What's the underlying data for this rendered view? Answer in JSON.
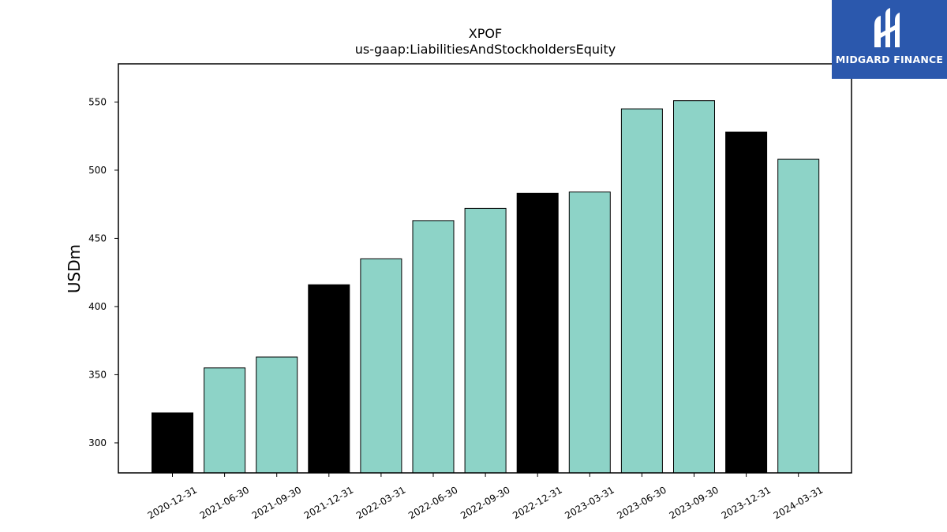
{
  "logo": {
    "text": "MIDGARD FINANCE",
    "background": "#2b58ad"
  },
  "chart_data": {
    "type": "bar",
    "title": "XPOF",
    "subtitle": "us-gaap:LiabilitiesAndStockholdersEquity",
    "ylabel": "USDm",
    "xlabel": "",
    "ylim": [
      278,
      578
    ],
    "yticks": [
      300,
      350,
      400,
      450,
      500,
      550
    ],
    "grid": false,
    "categories": [
      "2020-12-31",
      "2021-06-30",
      "2021-09-30",
      "2021-12-31",
      "2022-03-31",
      "2022-06-30",
      "2022-09-30",
      "2022-12-31",
      "2023-03-31",
      "2023-06-30",
      "2023-09-30",
      "2023-12-31",
      "2024-03-31"
    ],
    "values": [
      322,
      355,
      363,
      416,
      435,
      463,
      472,
      483,
      484,
      545,
      551,
      528,
      508
    ],
    "bar_colors": [
      "#000000",
      "#8dd3c7",
      "#8dd3c7",
      "#000000",
      "#8dd3c7",
      "#8dd3c7",
      "#8dd3c7",
      "#000000",
      "#8dd3c7",
      "#8dd3c7",
      "#8dd3c7",
      "#000000",
      "#8dd3c7"
    ]
  }
}
